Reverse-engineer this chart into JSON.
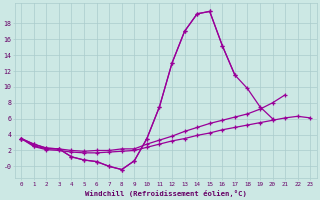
{
  "background_color": "#cce8e4",
  "line_color": "#990099",
  "grid_color": "#aacccc",
  "text_color": "#660066",
  "xlabel": "Windchill (Refroidissement éolien,°C)",
  "ylim": [
    -1.5,
    20.5
  ],
  "xlim": [
    -0.5,
    23.5
  ],
  "yticks": [
    0,
    2,
    4,
    6,
    8,
    10,
    12,
    14,
    16,
    18
  ],
  "ytick_labels": [
    "-0",
    "2",
    "4",
    "6",
    "8",
    "10",
    "12",
    "14",
    "16",
    "18"
  ],
  "y_main": [
    3.5,
    2.8,
    2.3,
    2.2,
    1.2,
    0.8,
    0.6,
    0.0,
    -0.4,
    0.7,
    3.5,
    7.5,
    13.0,
    17.0,
    19.2,
    19.5,
    15.2,
    11.5,
    null,
    null,
    null,
    null,
    null,
    null
  ],
  "y_line2": [
    3.5,
    2.8,
    2.3,
    2.2,
    1.2,
    0.8,
    0.6,
    0.0,
    -0.4,
    0.7,
    3.5,
    7.5,
    13.0,
    17.0,
    19.2,
    19.5,
    15.2,
    11.5,
    9.8,
    7.5,
    6.0,
    null,
    null,
    null
  ],
  "y_line3": [
    3.5,
    2.6,
    2.2,
    2.2,
    2.0,
    1.9,
    2.0,
    2.0,
    2.2,
    2.2,
    2.8,
    3.3,
    3.8,
    4.4,
    4.9,
    5.4,
    5.8,
    6.2,
    6.6,
    7.2,
    8.0,
    9.0,
    null,
    null
  ],
  "y_line4": [
    3.5,
    2.5,
    2.1,
    2.0,
    1.8,
    1.7,
    1.7,
    1.8,
    1.9,
    2.0,
    2.4,
    2.8,
    3.2,
    3.5,
    3.9,
    4.2,
    4.6,
    4.9,
    5.2,
    5.5,
    5.8,
    6.1,
    6.3,
    6.1
  ]
}
